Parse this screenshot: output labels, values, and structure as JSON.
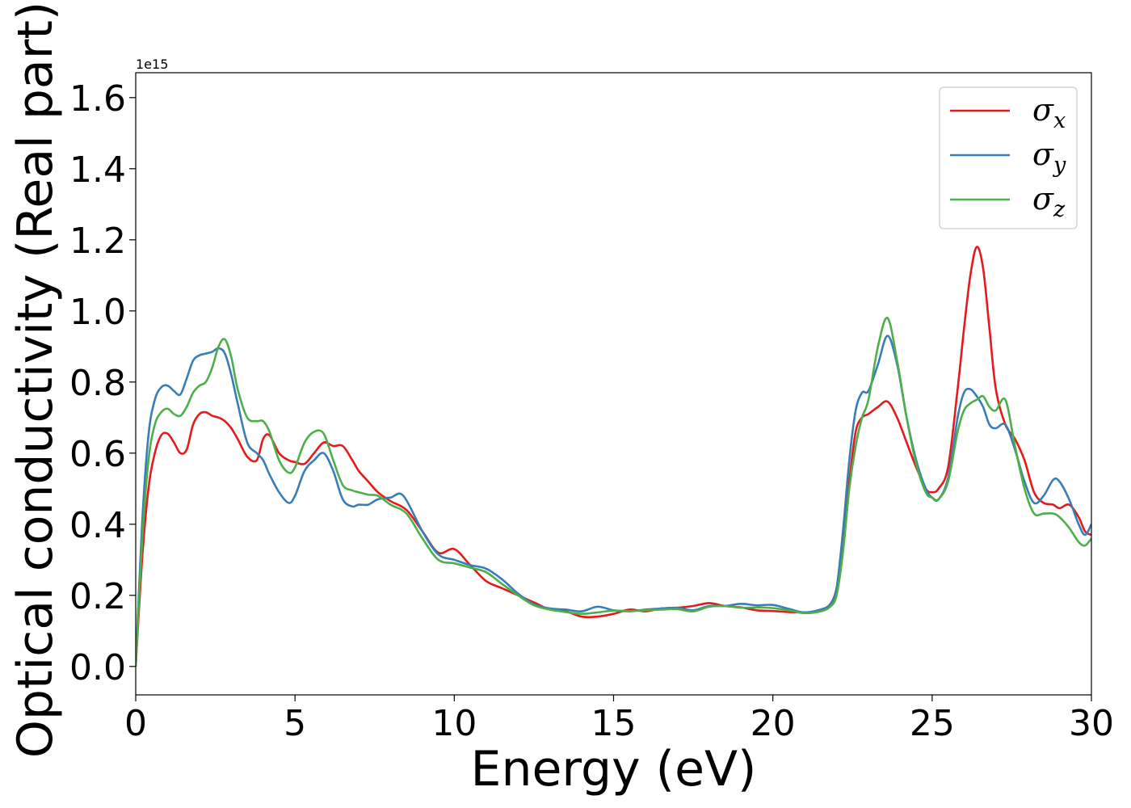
{
  "chart_data": {
    "type": "line",
    "title": "",
    "xlabel": "Energy (eV)",
    "ylabel": "Optical conductivity (Real part)",
    "y_offset_label": "1e15",
    "y_scale_multiplier": 1000000000000000.0,
    "xlim": [
      0,
      30
    ],
    "ylim": [
      -0.08,
      1.67
    ],
    "xticks": [
      0,
      5,
      10,
      15,
      20,
      25,
      30
    ],
    "xtick_labels": [
      "0",
      "5",
      "10",
      "15",
      "20",
      "25",
      "30"
    ],
    "yticks": [
      0.0,
      0.2,
      0.4,
      0.6,
      0.8,
      1.0,
      1.2,
      1.4,
      1.6
    ],
    "ytick_labels": [
      "0.0",
      "0.2",
      "0.4",
      "0.6",
      "0.8",
      "1.0",
      "1.2",
      "1.4",
      "1.6"
    ],
    "grid": false,
    "legend_position": "top-right",
    "series": [
      {
        "name": "σx",
        "symbol": "σ",
        "subscript": "x",
        "color": "#e41a1c",
        "x": [
          0,
          0.2,
          0.4,
          0.6,
          0.8,
          1.0,
          1.2,
          1.4,
          1.6,
          1.8,
          2.0,
          2.2,
          2.4,
          2.6,
          2.8,
          3.0,
          3.2,
          3.5,
          3.8,
          4.0,
          4.2,
          4.5,
          4.8,
          5.0,
          5.3,
          5.6,
          5.9,
          6.2,
          6.5,
          6.8,
          7.0,
          7.3,
          7.6,
          8.0,
          8.5,
          9.0,
          9.5,
          10.0,
          10.5,
          11.0,
          11.5,
          12.0,
          12.5,
          13.0,
          13.5,
          14.0,
          14.5,
          15.0,
          15.5,
          16.0,
          16.5,
          17.0,
          17.5,
          18.0,
          18.5,
          19.0,
          19.5,
          20.0,
          20.5,
          21.0,
          21.5,
          21.8,
          22.0,
          22.2,
          22.4,
          22.6,
          22.8,
          23.0,
          23.3,
          23.6,
          23.9,
          24.2,
          24.5,
          24.8,
          25.0,
          25.2,
          25.5,
          25.8,
          26.0,
          26.2,
          26.4,
          26.6,
          26.8,
          27.0,
          27.3,
          27.6,
          27.9,
          28.2,
          28.5,
          28.8,
          29.0,
          29.3,
          29.6,
          29.8,
          30.0
        ],
        "y": [
          0.0,
          0.3,
          0.5,
          0.6,
          0.65,
          0.655,
          0.63,
          0.6,
          0.61,
          0.68,
          0.71,
          0.715,
          0.705,
          0.7,
          0.69,
          0.67,
          0.64,
          0.59,
          0.58,
          0.64,
          0.65,
          0.6,
          0.58,
          0.575,
          0.57,
          0.6,
          0.63,
          0.62,
          0.62,
          0.58,
          0.55,
          0.52,
          0.49,
          0.465,
          0.44,
          0.38,
          0.32,
          0.33,
          0.285,
          0.24,
          0.22,
          0.2,
          0.18,
          0.16,
          0.155,
          0.14,
          0.14,
          0.148,
          0.16,
          0.155,
          0.163,
          0.165,
          0.17,
          0.178,
          0.17,
          0.166,
          0.158,
          0.156,
          0.153,
          0.152,
          0.156,
          0.175,
          0.22,
          0.34,
          0.52,
          0.66,
          0.7,
          0.71,
          0.73,
          0.745,
          0.7,
          0.63,
          0.56,
          0.5,
          0.49,
          0.5,
          0.56,
          0.78,
          0.95,
          1.1,
          1.18,
          1.12,
          0.95,
          0.78,
          0.68,
          0.64,
          0.58,
          0.49,
          0.46,
          0.455,
          0.445,
          0.455,
          0.42,
          0.38,
          0.37
        ]
      },
      {
        "name": "σy",
        "symbol": "σ",
        "subscript": "y",
        "color": "#377eb8",
        "x": [
          0,
          0.2,
          0.4,
          0.6,
          0.8,
          1.0,
          1.2,
          1.4,
          1.6,
          1.8,
          2.0,
          2.2,
          2.4,
          2.6,
          2.8,
          3.0,
          3.2,
          3.5,
          3.8,
          4.0,
          4.2,
          4.5,
          4.8,
          5.0,
          5.3,
          5.6,
          5.9,
          6.2,
          6.5,
          6.8,
          7.0,
          7.3,
          7.6,
          8.0,
          8.4,
          9.0,
          9.5,
          10.0,
          10.5,
          11.0,
          11.5,
          12.0,
          12.5,
          13.0,
          13.5,
          14.0,
          14.5,
          15.0,
          15.5,
          16.0,
          16.5,
          17.0,
          17.5,
          18.0,
          18.5,
          19.0,
          19.5,
          20.0,
          20.5,
          21.0,
          21.5,
          21.8,
          22.0,
          22.2,
          22.4,
          22.6,
          22.8,
          23.0,
          23.3,
          23.6,
          23.9,
          24.2,
          24.5,
          24.8,
          25.0,
          25.2,
          25.5,
          25.8,
          26.0,
          26.2,
          26.4,
          26.6,
          26.8,
          27.0,
          27.3,
          27.6,
          27.9,
          28.2,
          28.5,
          28.8,
          29.0,
          29.3,
          29.6,
          29.8,
          30.0
        ],
        "y": [
          0.0,
          0.4,
          0.65,
          0.75,
          0.785,
          0.79,
          0.775,
          0.765,
          0.81,
          0.86,
          0.875,
          0.88,
          0.885,
          0.895,
          0.88,
          0.82,
          0.74,
          0.63,
          0.6,
          0.58,
          0.54,
          0.49,
          0.46,
          0.48,
          0.55,
          0.58,
          0.6,
          0.55,
          0.47,
          0.45,
          0.455,
          0.455,
          0.47,
          0.475,
          0.48,
          0.38,
          0.315,
          0.3,
          0.285,
          0.275,
          0.245,
          0.205,
          0.175,
          0.163,
          0.16,
          0.155,
          0.168,
          0.158,
          0.155,
          0.16,
          0.163,
          0.165,
          0.158,
          0.17,
          0.17,
          0.176,
          0.172,
          0.173,
          0.162,
          0.152,
          0.16,
          0.175,
          0.22,
          0.38,
          0.58,
          0.72,
          0.77,
          0.775,
          0.85,
          0.93,
          0.85,
          0.7,
          0.58,
          0.5,
          0.475,
          0.47,
          0.53,
          0.7,
          0.77,
          0.78,
          0.76,
          0.73,
          0.68,
          0.67,
          0.68,
          0.61,
          0.52,
          0.46,
          0.48,
          0.525,
          0.52,
          0.47,
          0.4,
          0.37,
          0.4
        ]
      },
      {
        "name": "σz",
        "symbol": "σ",
        "subscript": "z",
        "color": "#4daf4a",
        "x": [
          0,
          0.2,
          0.4,
          0.6,
          0.8,
          1.0,
          1.2,
          1.4,
          1.6,
          1.8,
          2.0,
          2.2,
          2.4,
          2.6,
          2.8,
          3.0,
          3.2,
          3.5,
          3.8,
          4.0,
          4.2,
          4.5,
          4.8,
          5.0,
          5.3,
          5.6,
          5.9,
          6.2,
          6.5,
          6.8,
          7.0,
          7.3,
          7.6,
          8.0,
          8.5,
          9.0,
          9.5,
          10.0,
          10.5,
          11.0,
          11.5,
          12.0,
          12.5,
          13.0,
          13.5,
          14.0,
          14.5,
          15.0,
          15.5,
          16.0,
          16.5,
          17.0,
          17.5,
          18.0,
          18.5,
          19.0,
          19.5,
          20.0,
          20.5,
          21.0,
          21.5,
          21.8,
          22.0,
          22.2,
          22.4,
          22.6,
          22.8,
          23.0,
          23.3,
          23.6,
          23.9,
          24.2,
          24.5,
          24.8,
          25.0,
          25.2,
          25.5,
          25.8,
          26.0,
          26.2,
          26.4,
          26.6,
          26.8,
          27.0,
          27.3,
          27.6,
          27.9,
          28.2,
          28.5,
          28.8,
          29.0,
          29.3,
          29.6,
          29.8,
          30.0
        ],
        "y": [
          0.0,
          0.35,
          0.58,
          0.68,
          0.715,
          0.725,
          0.71,
          0.705,
          0.73,
          0.77,
          0.79,
          0.8,
          0.84,
          0.9,
          0.92,
          0.87,
          0.78,
          0.7,
          0.69,
          0.69,
          0.66,
          0.58,
          0.545,
          0.56,
          0.63,
          0.66,
          0.655,
          0.58,
          0.51,
          0.495,
          0.49,
          0.483,
          0.48,
          0.455,
          0.43,
          0.36,
          0.3,
          0.29,
          0.278,
          0.265,
          0.232,
          0.2,
          0.172,
          0.16,
          0.153,
          0.148,
          0.152,
          0.157,
          0.156,
          0.158,
          0.16,
          0.161,
          0.155,
          0.168,
          0.17,
          0.165,
          0.166,
          0.164,
          0.158,
          0.15,
          0.155,
          0.168,
          0.2,
          0.32,
          0.5,
          0.62,
          0.7,
          0.75,
          0.9,
          0.98,
          0.86,
          0.7,
          0.57,
          0.49,
          0.475,
          0.47,
          0.52,
          0.66,
          0.72,
          0.74,
          0.75,
          0.76,
          0.73,
          0.72,
          0.75,
          0.62,
          0.5,
          0.43,
          0.43,
          0.43,
          0.42,
          0.39,
          0.35,
          0.34,
          0.36
        ]
      }
    ]
  }
}
